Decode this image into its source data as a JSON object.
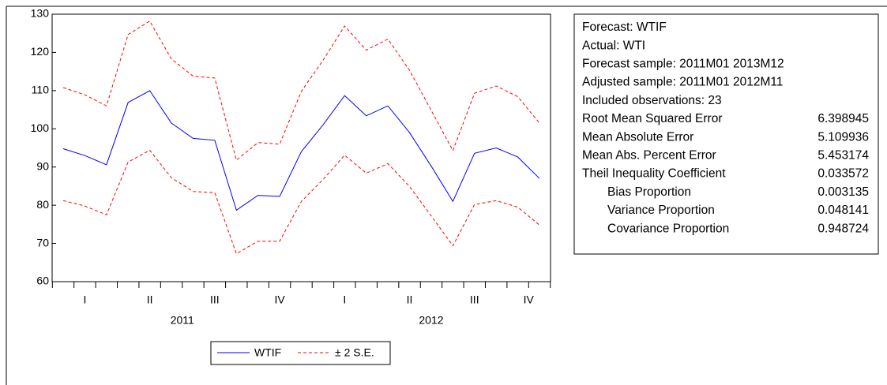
{
  "chart_data": {
    "type": "line",
    "ylim": [
      60,
      130
    ],
    "yticks": [
      60,
      70,
      80,
      90,
      100,
      110,
      120,
      130
    ],
    "series": [
      {
        "name": "WTIF",
        "color": "#0000ff",
        "values": [
          94.8,
          93.0,
          90.6,
          106.9,
          110.0,
          101.5,
          97.5,
          97.0,
          78.7,
          82.6,
          82.3,
          94.0,
          101.0,
          108.7,
          103.4,
          106.0,
          99.0,
          90.2,
          81.0,
          93.6,
          95.0,
          92.6,
          87.0
        ]
      }
    ],
    "band": {
      "name": "± 2 S.E.",
      "color": "#ff0000",
      "upper": [
        110.8,
        108.9,
        106.0,
        124.7,
        128.2,
        118.3,
        113.8,
        113.3,
        91.8,
        96.4,
        96.0,
        109.8,
        117.9,
        126.9,
        120.6,
        123.5,
        115.3,
        104.8,
        94.3,
        109.3,
        111.2,
        108.4,
        101.5
      ],
      "lower": [
        81.2,
        79.8,
        77.5,
        91.3,
        94.4,
        87.2,
        83.6,
        83.3,
        67.3,
        70.6,
        70.6,
        81.0,
        86.7,
        93.1,
        88.4,
        90.9,
        84.9,
        77.2,
        69.4,
        80.2,
        81.2,
        79.5,
        74.8
      ]
    },
    "quarters": [
      "I",
      "II",
      "III",
      "IV",
      "I",
      "II",
      "III",
      "IV"
    ],
    "years": [
      "2011",
      "2012"
    ]
  },
  "forecast_stats": {
    "header": [
      "Forecast: WTIF",
      "Actual: WTI",
      "Forecast sample: 2011M01 2013M12",
      "Adjusted sample: 2011M01 2012M11",
      "Included observations: 23"
    ],
    "rows": [
      [
        "Root Mean Squared Error",
        "6.398945"
      ],
      [
        "Mean Absolute Error",
        "5.109936"
      ],
      [
        "Mean Abs. Percent Error",
        "5.453174"
      ],
      [
        "Theil Inequality Coefficient",
        "0.033572"
      ],
      [
        "Bias Proportion",
        "0.003135"
      ],
      [
        "Variance Proportion",
        "0.048141"
      ],
      [
        "Covariance Proportion",
        "0.948724"
      ]
    ]
  }
}
